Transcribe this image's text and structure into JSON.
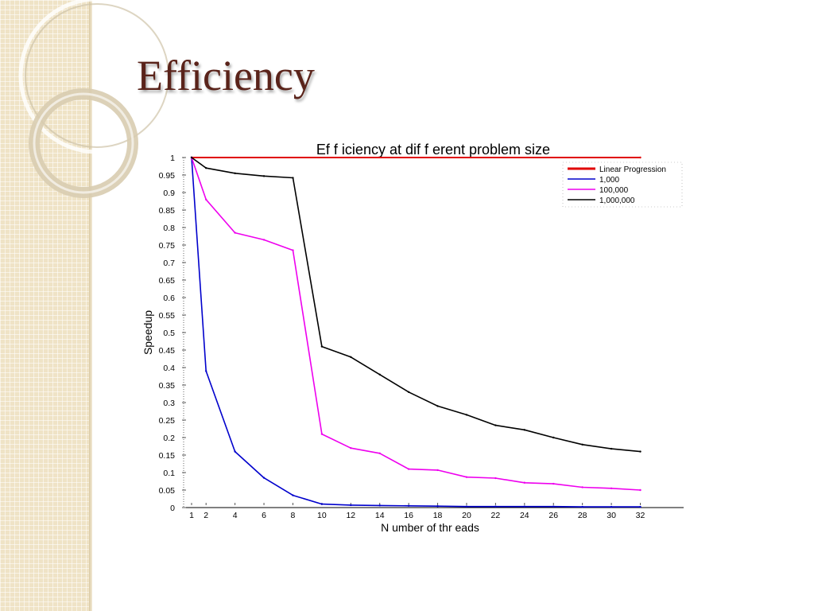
{
  "slide": {
    "title": "Efficiency"
  },
  "chart_data": {
    "type": "line",
    "title": "Ef f iciency at dif f erent problem size",
    "xlabel": "N umber of  thr eads",
    "ylabel": "Speedup",
    "xlim": [
      0,
      35
    ],
    "ylim": [
      0,
      1
    ],
    "xticks": [
      1,
      2,
      4,
      6,
      8,
      10,
      12,
      14,
      16,
      18,
      20,
      22,
      24,
      26,
      28,
      30,
      32
    ],
    "yticks": [
      0,
      0.05,
      0.1,
      0.15,
      0.2,
      0.25,
      0.3,
      0.35,
      0.4,
      0.45,
      0.5,
      0.55,
      0.6,
      0.65,
      0.7,
      0.75,
      0.8,
      0.85,
      0.9,
      0.95,
      1
    ],
    "ytick_labels": [
      "0",
      "0.05",
      "0.1",
      "0.15",
      "0.2",
      "0.25",
      "0.3",
      "0.35",
      "0.4",
      "0.45",
      "0.5",
      "0.55",
      "0.6",
      "0.65",
      "0.7",
      "0.75",
      "0.8",
      "0.85",
      "0.9",
      "0.95",
      "1"
    ],
    "grid": false,
    "legend_position": "top-right",
    "x": [
      1,
      2,
      4,
      6,
      8,
      10,
      12,
      14,
      16,
      18,
      20,
      22,
      24,
      26,
      28,
      30,
      32
    ],
    "series": [
      {
        "name": "Linear Progression",
        "color": "#e00000",
        "x": [
          1,
          32
        ],
        "values": [
          1,
          1
        ]
      },
      {
        "name": "1,000",
        "color": "#0000cc",
        "values": [
          1,
          0.39,
          0.16,
          0.085,
          0.035,
          0.01,
          0.007,
          0.006,
          0.005,
          0.004,
          0.003,
          0.003,
          0.003,
          0.003,
          0.002,
          0.002,
          0.002
        ]
      },
      {
        "name": "100,000",
        "color": "#ee00ee",
        "values": [
          1,
          0.88,
          0.785,
          0.765,
          0.735,
          0.21,
          0.17,
          0.155,
          0.11,
          0.107,
          0.087,
          0.084,
          0.071,
          0.068,
          0.058,
          0.055,
          0.05
        ]
      },
      {
        "name": "1,000,000",
        "color": "#000000",
        "values": [
          1,
          0.97,
          0.955,
          0.947,
          0.942,
          0.46,
          0.43,
          0.38,
          0.33,
          0.29,
          0.265,
          0.235,
          0.222,
          0.2,
          0.18,
          0.168,
          0.16
        ]
      }
    ]
  }
}
